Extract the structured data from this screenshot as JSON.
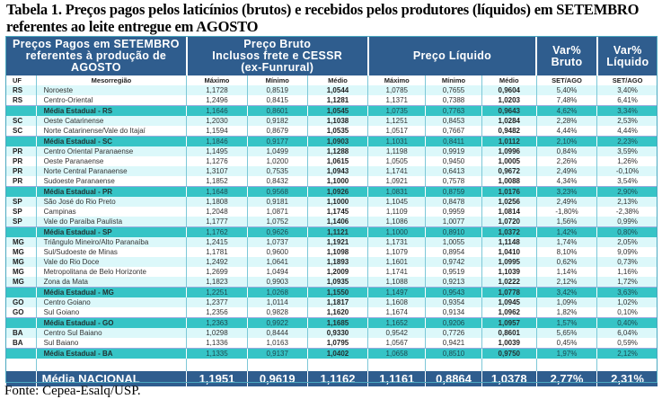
{
  "title": "Tabela 1. Preços pagos pelos laticínios (brutos) e  recebidos pelos produtores (líquidos) em SETEMBRO referentes ao leite entregue em AGOSTO",
  "header": {
    "group_left": "Preços Pagos em SETEMBRO referentes à produção de AGOSTO",
    "group_bruto": "Preço Bruto Inclusos frete e CESSR (ex-Funrural)",
    "group_bruto_l1": "Preço Bruto",
    "group_bruto_l2": "Inclusos frete e CESSR",
    "group_bruto_l3": "(ex-Funrural)",
    "group_liquido": "Preço Líquido",
    "var_bruto_l1": "Var%",
    "var_bruto_l2": "Bruto",
    "var_liquido_l1": "Var%",
    "var_liquido_l2": "Líquido",
    "sub": [
      "UF",
      "Mesorregião",
      "Máximo",
      "Mínimo",
      "Médio",
      "Máximo",
      "Mínimo",
      "Médio",
      "SET/AGO",
      "SET/AGO"
    ]
  },
  "rows": [
    {
      "type": "row",
      "uf": "RS",
      "meso": "Noroeste",
      "bmax": "1,1728",
      "bmin": "0,8519",
      "bmed": "1,0544",
      "lmax": "1,0785",
      "lmin": "0,7655",
      "lmed": "0,9604",
      "vb": "5,40%",
      "vl": "3,40%"
    },
    {
      "type": "row",
      "uf": "RS",
      "meso": "Centro-Oriental",
      "bmax": "1,2496",
      "bmin": "0,8415",
      "bmed": "1,1281",
      "lmax": "1,1371",
      "lmin": "0,7388",
      "lmed": "1,0203",
      "vb": "7,48%",
      "vl": "6,41%"
    },
    {
      "type": "avg",
      "uf": "",
      "meso": "Média Estadual - RS",
      "bmax": "1,1646",
      "bmin": "0,8601",
      "bmed": "1,0545",
      "lmax": "1,0735",
      "lmin": "0,7763",
      "lmed": "0,9643",
      "vb": "4,62%",
      "vl": "3,34%"
    },
    {
      "type": "row",
      "uf": "SC",
      "meso": "Oeste Catarinense",
      "bmax": "1,2030",
      "bmin": "0,9182",
      "bmed": "1,1038",
      "lmax": "1,1251",
      "lmin": "0,8453",
      "lmed": "1,0284",
      "vb": "2,28%",
      "vl": "2,53%"
    },
    {
      "type": "row",
      "uf": "SC",
      "meso": "Norte Catarinense/Vale do Itajaí",
      "bmax": "1,1594",
      "bmin": "0,8679",
      "bmed": "1,0535",
      "lmax": "1,0517",
      "lmin": "0,7667",
      "lmed": "0,9482",
      "vb": "4,44%",
      "vl": "4,44%"
    },
    {
      "type": "avg",
      "uf": "",
      "meso": "Média Estadual - SC",
      "bmax": "1,1846",
      "bmin": "0,9177",
      "bmed": "1,0903",
      "lmax": "1,1031",
      "lmin": "0,8411",
      "lmed": "1,0112",
      "vb": "2,10%",
      "vl": "2,23%"
    },
    {
      "type": "row",
      "uf": "PR",
      "meso": "Centro Oriental Paranaense",
      "bmax": "1,1495",
      "bmin": "1,0499",
      "bmed": "1,1288",
      "lmax": "1,1198",
      "lmin": "0,9919",
      "lmed": "1,0996",
      "vb": "0,84%",
      "vl": "3,59%"
    },
    {
      "type": "row",
      "uf": "PR",
      "meso": "Oeste Paranaense",
      "bmax": "1,1276",
      "bmin": "1,0200",
      "bmed": "1,0615",
      "lmax": "1,0505",
      "lmin": "0,9450",
      "lmed": "1,0005",
      "vb": "2,26%",
      "vl": "1,26%"
    },
    {
      "type": "row",
      "uf": "PR",
      "meso": "Norte Central Paranaense",
      "bmax": "1,3107",
      "bmin": "0,7535",
      "bmed": "1,0943",
      "lmax": "1,1741",
      "lmin": "0,6413",
      "lmed": "0,9672",
      "vb": "2,49%",
      "vl": "-0,10%"
    },
    {
      "type": "row",
      "uf": "PR",
      "meso": "Sudoeste Paranaense",
      "bmax": "1,1852",
      "bmin": "0,8432",
      "bmed": "1,1000",
      "lmax": "1,0921",
      "lmin": "0,7578",
      "lmed": "1,0088",
      "vb": "4,34%",
      "vl": "3,54%"
    },
    {
      "type": "avg",
      "uf": "",
      "meso": "Média Estadual - PR",
      "bmax": "1,1648",
      "bmin": "0,9568",
      "bmed": "1,0926",
      "lmax": "1,0831",
      "lmin": "0,8759",
      "lmed": "1,0176",
      "vb": "3,23%",
      "vl": "2,90%"
    },
    {
      "type": "row",
      "uf": "SP",
      "meso": "São José do Rio Preto",
      "bmax": "1,1808",
      "bmin": "0,9181",
      "bmed": "1,1000",
      "lmax": "1,1045",
      "lmin": "0,8478",
      "lmed": "1,0256",
      "vb": "2,49%",
      "vl": "2,13%"
    },
    {
      "type": "row",
      "uf": "SP",
      "meso": "Campinas",
      "bmax": "1,2048",
      "bmin": "1,0871",
      "bmed": "1,1745",
      "lmax": "1,1109",
      "lmin": "0,9959",
      "lmed": "1,0814",
      "vb": "-1,80%",
      "vl": "-2,38%"
    },
    {
      "type": "row",
      "uf": "SP",
      "meso": "Vale do Paraíba Paulista",
      "bmax": "1,1777",
      "bmin": "1,0752",
      "bmed": "1,1406",
      "lmax": "1,1086",
      "lmin": "1,0077",
      "lmed": "1,0720",
      "vb": "1,56%",
      "vl": "0,99%"
    },
    {
      "type": "avg",
      "uf": "",
      "meso": "Média Estadual - SP",
      "bmax": "1,1762",
      "bmin": "0,9626",
      "bmed": "1,1121",
      "lmax": "1,1000",
      "lmin": "0,8910",
      "lmed": "1,0372",
      "vb": "1,42%",
      "vl": "0,80%"
    },
    {
      "type": "row",
      "uf": "MG",
      "meso": "Triângulo Mineiro/Alto Paranaíba",
      "bmax": "1,2415",
      "bmin": "1,0737",
      "bmed": "1,1921",
      "lmax": "1,1731",
      "lmin": "1,0055",
      "lmed": "1,1148",
      "vb": "1,74%",
      "vl": "2,05%"
    },
    {
      "type": "row",
      "uf": "MG",
      "meso": "Sul/Sudoeste de Minas",
      "bmax": "1,1781",
      "bmin": "0,9600",
      "bmed": "1,1098",
      "lmax": "1,1079",
      "lmin": "0,8954",
      "lmed": "1,0410",
      "vb": "8,10%",
      "vl": "9,09%"
    },
    {
      "type": "row",
      "uf": "MG",
      "meso": "Vale do Rio Doce",
      "bmax": "1,2492",
      "bmin": "1,0641",
      "bmed": "1,1893",
      "lmax": "1,1601",
      "lmin": "0,9742",
      "lmed": "1,0995",
      "vb": "0,62%",
      "vl": "0,73%"
    },
    {
      "type": "row",
      "uf": "MG",
      "meso": "Metropolitana de Belo Horizonte",
      "bmax": "1,2699",
      "bmin": "1,0494",
      "bmed": "1,2009",
      "lmax": "1,1741",
      "lmin": "0,9519",
      "lmed": "1,1039",
      "vb": "1,14%",
      "vl": "1,16%"
    },
    {
      "type": "row",
      "uf": "MG",
      "meso": "Zona da Mata",
      "bmax": "1,1823",
      "bmin": "0,9903",
      "bmed": "1,0935",
      "lmax": "1,1088",
      "lmin": "0,9213",
      "lmed": "1,0222",
      "vb": "2,12%",
      "vl": "1,72%"
    },
    {
      "type": "avg",
      "uf": "",
      "meso": "Média Estadual - MG",
      "bmax": "1,2251",
      "bmin": "1,0268",
      "bmed": "1,1550",
      "lmax": "1,1497",
      "lmin": "0,9543",
      "lmed": "1,0778",
      "vb": "3,42%",
      "vl": "3,63%"
    },
    {
      "type": "row",
      "uf": "GO",
      "meso": "Centro Goiano",
      "bmax": "1,2377",
      "bmin": "1,0114",
      "bmed": "1,1817",
      "lmax": "1,1608",
      "lmin": "0,9354",
      "lmed": "1,0945",
      "vb": "1,09%",
      "vl": "1,02%"
    },
    {
      "type": "row",
      "uf": "GO",
      "meso": "Sul Goiano",
      "bmax": "1,2356",
      "bmin": "0,9828",
      "bmed": "1,1620",
      "lmax": "1,1674",
      "lmin": "0,9134",
      "lmed": "1,0962",
      "vb": "1,82%",
      "vl": "0,10%"
    },
    {
      "type": "avg",
      "uf": "",
      "meso": "Média Estadual - GO",
      "bmax": "1,2363",
      "bmin": "0,9922",
      "bmed": "1,1685",
      "lmax": "1,1652",
      "lmin": "0,9206",
      "lmed": "1,0957",
      "vb": "1,57%",
      "vl": "0,40%"
    },
    {
      "type": "row",
      "uf": "BA",
      "meso": "Centro Sul Baiano",
      "bmax": "1,0298",
      "bmin": "0,8444",
      "bmed": "0,9330",
      "lmax": "0,9542",
      "lmin": "0,7726",
      "lmed": "0,8601",
      "vb": "5,65%",
      "vl": "6,04%"
    },
    {
      "type": "row",
      "uf": "BA",
      "meso": "Sul Baiano",
      "bmax": "1,1336",
      "bmin": "1,0163",
      "bmed": "1,0795",
      "lmax": "1,0567",
      "lmin": "0,9421",
      "lmed": "1,0039",
      "vb": "0,45%",
      "vl": "0,59%"
    },
    {
      "type": "avg",
      "uf": "",
      "meso": "Média Estadual - BA",
      "bmax": "1,1335",
      "bmin": "0,9137",
      "bmed": "1,0402",
      "lmax": "1,0658",
      "lmin": "0,8510",
      "lmed": "0,9750",
      "vb": "1,97%",
      "vl": "2,12%"
    }
  ],
  "national": {
    "label": "Média NACIONAL",
    "bmax": "1,1951",
    "bmin": "0,9619",
    "bmed": "1,1162",
    "lmax": "1,1161",
    "lmin": "0,8864",
    "lmed": "1,0378",
    "vb": "2,77%",
    "vl": "2,31%"
  },
  "source": "Fonte: Cepea-Esalq/USP.",
  "colors": {
    "header_bg": "#2f5d8e",
    "avg_row_bg": "#36c4c6",
    "light_row_bg": "#dcf8fa",
    "border": "#4aa8c0"
  }
}
